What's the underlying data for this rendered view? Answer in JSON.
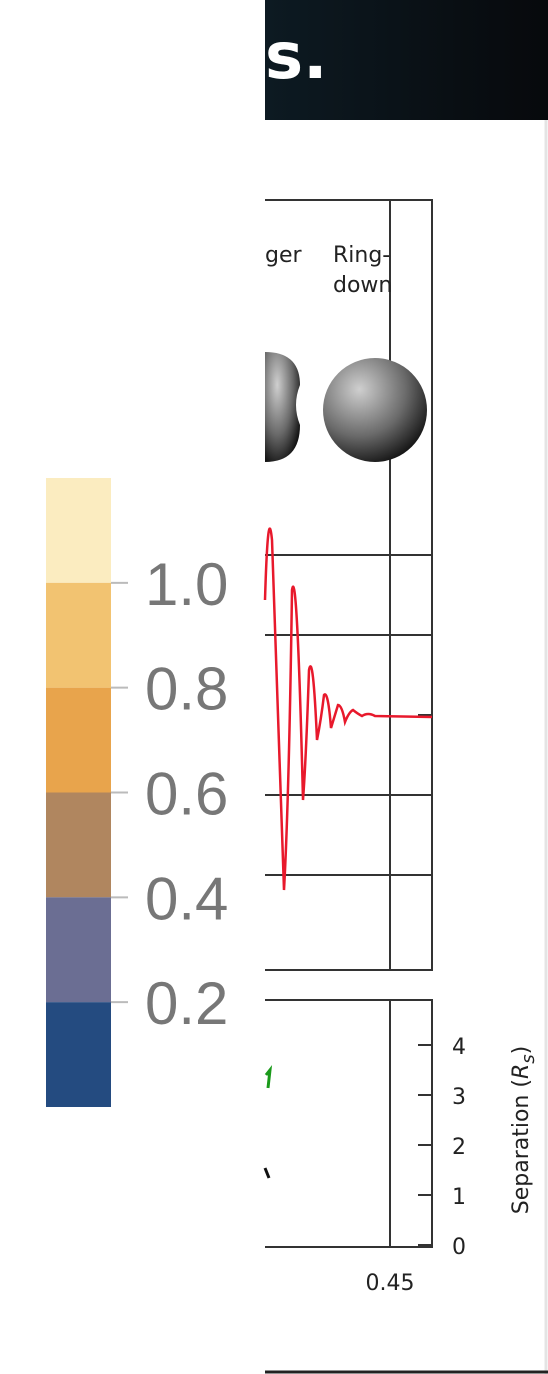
{
  "header": {
    "text": "s."
  },
  "colorbar": {
    "colors": [
      "#fbecc0",
      "#f2c371",
      "#e8a44c",
      "#b0865f",
      "#6b6e93",
      "#244b80"
    ],
    "labels": [
      "1.0",
      "0.8",
      "0.6",
      "0.4",
      "0.2"
    ]
  },
  "figure": {
    "phase_labels": {
      "merger": "ger",
      "ringdown": [
        "Ring-",
        "down"
      ]
    },
    "x_tick": "0.45",
    "separation_axis": {
      "ticks": [
        "4",
        "3",
        "2",
        "1",
        "0"
      ],
      "label": "Separation",
      "symbol": "R",
      "subscript": "s"
    }
  }
}
